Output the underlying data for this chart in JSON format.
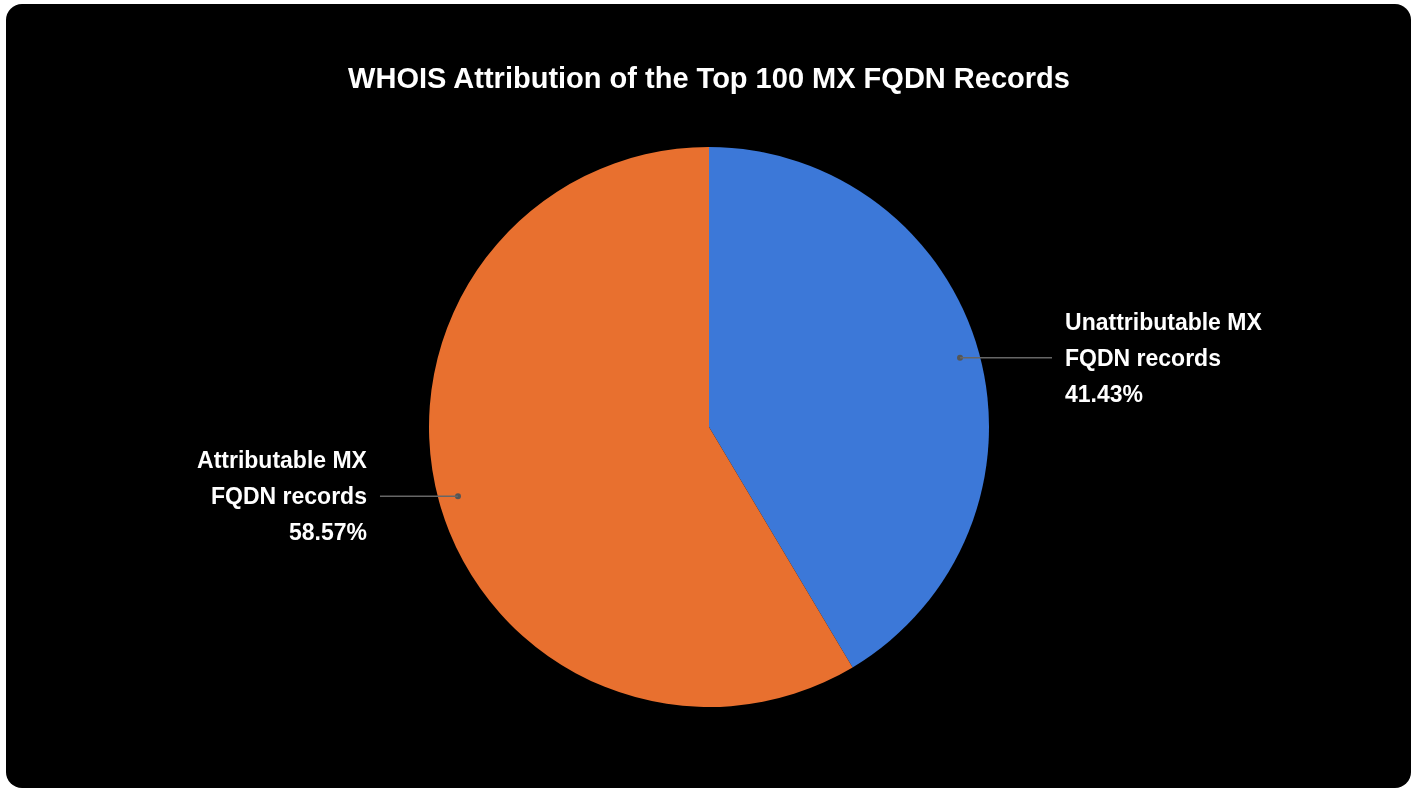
{
  "chart_data": {
    "type": "pie",
    "title": "WHOIS Attribution of the Top 100 MX FQDN Records",
    "categories": [
      "Unattributable MX FQDN records",
      "Attributable MX FQDN records"
    ],
    "values": [
      41.43,
      58.57
    ],
    "colors": [
      "#3c78d8",
      "#e8702f"
    ],
    "value_labels": [
      "41.43%",
      "58.57%"
    ]
  }
}
